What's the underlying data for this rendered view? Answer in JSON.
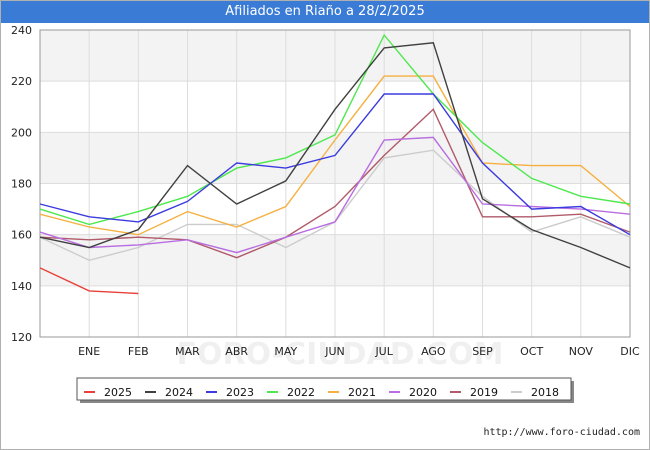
{
  "header": {
    "title": "Afiliados en Riaño a 28/2/2025"
  },
  "footer": {
    "source": "http://www.foro-ciudad.com"
  },
  "watermark": "FORO-CIUDAD.COM",
  "chart_data": {
    "type": "line",
    "title": "Afiliados en Riaño a 28/2/2025",
    "categories": [
      "ENE",
      "FEB",
      "MAR",
      "ABR",
      "MAY",
      "JUN",
      "JUL",
      "AGO",
      "SEP",
      "OCT",
      "NOV",
      "DIC"
    ],
    "ylim": [
      120,
      240
    ],
    "yticks": [
      120,
      140,
      160,
      180,
      200,
      220,
      240
    ],
    "grid": true,
    "legend_position": "bottom",
    "series": [
      {
        "name": "2025",
        "color": "#e8413a",
        "x": [
          0,
          1,
          2
        ],
        "values": [
          147,
          138,
          137
        ]
      },
      {
        "name": "2024",
        "color": "#404040",
        "x": [
          0,
          1,
          2,
          3,
          4,
          5,
          6,
          7,
          8,
          9,
          10,
          11,
          12
        ],
        "values": [
          159,
          155,
          162,
          187,
          172,
          181,
          209,
          233,
          235,
          174,
          162,
          155,
          147
        ]
      },
      {
        "name": "2023",
        "color": "#3b3be0",
        "x": [
          0,
          1,
          2,
          3,
          4,
          5,
          6,
          7,
          8,
          9,
          10,
          11,
          12
        ],
        "values": [
          172,
          167,
          165,
          173,
          188,
          186,
          191,
          215,
          215,
          188,
          170,
          171,
          160
        ]
      },
      {
        "name": "2022",
        "color": "#4ee84e",
        "x": [
          0,
          1,
          2,
          3,
          4,
          5,
          6,
          7,
          8,
          9,
          10,
          11,
          12
        ],
        "values": [
          170,
          164,
          169,
          175,
          186,
          190,
          199,
          238,
          215,
          196,
          182,
          175,
          172
        ]
      },
      {
        "name": "2021",
        "color": "#f5b041",
        "x": [
          0,
          1,
          2,
          3,
          4,
          5,
          6,
          7,
          8,
          9,
          10,
          11,
          12
        ],
        "values": [
          168,
          163,
          160,
          169,
          163,
          171,
          197,
          222,
          222,
          188,
          187,
          187,
          171
        ]
      },
      {
        "name": "2020",
        "color": "#b86ee0",
        "x": [
          0,
          1,
          2,
          3,
          4,
          5,
          6,
          7,
          8,
          9,
          10,
          11,
          12
        ],
        "values": [
          161,
          155,
          156,
          158,
          153,
          159,
          165,
          197,
          198,
          172,
          171,
          170,
          168
        ]
      },
      {
        "name": "2019",
        "color": "#b05a6a",
        "x": [
          0,
          1,
          2,
          3,
          4,
          5,
          6,
          7,
          8,
          9,
          10,
          11,
          12
        ],
        "values": [
          159,
          158,
          159,
          158,
          151,
          159,
          171,
          191,
          209,
          167,
          167,
          168,
          161
        ]
      },
      {
        "name": "2018",
        "color": "#cccccc",
        "x": [
          0,
          1,
          2,
          3,
          4,
          5,
          6,
          7,
          8,
          9,
          10,
          11,
          12
        ],
        "values": [
          159,
          150,
          155,
          164,
          164,
          155,
          165,
          190,
          193,
          175,
          161,
          167,
          159
        ]
      }
    ]
  }
}
